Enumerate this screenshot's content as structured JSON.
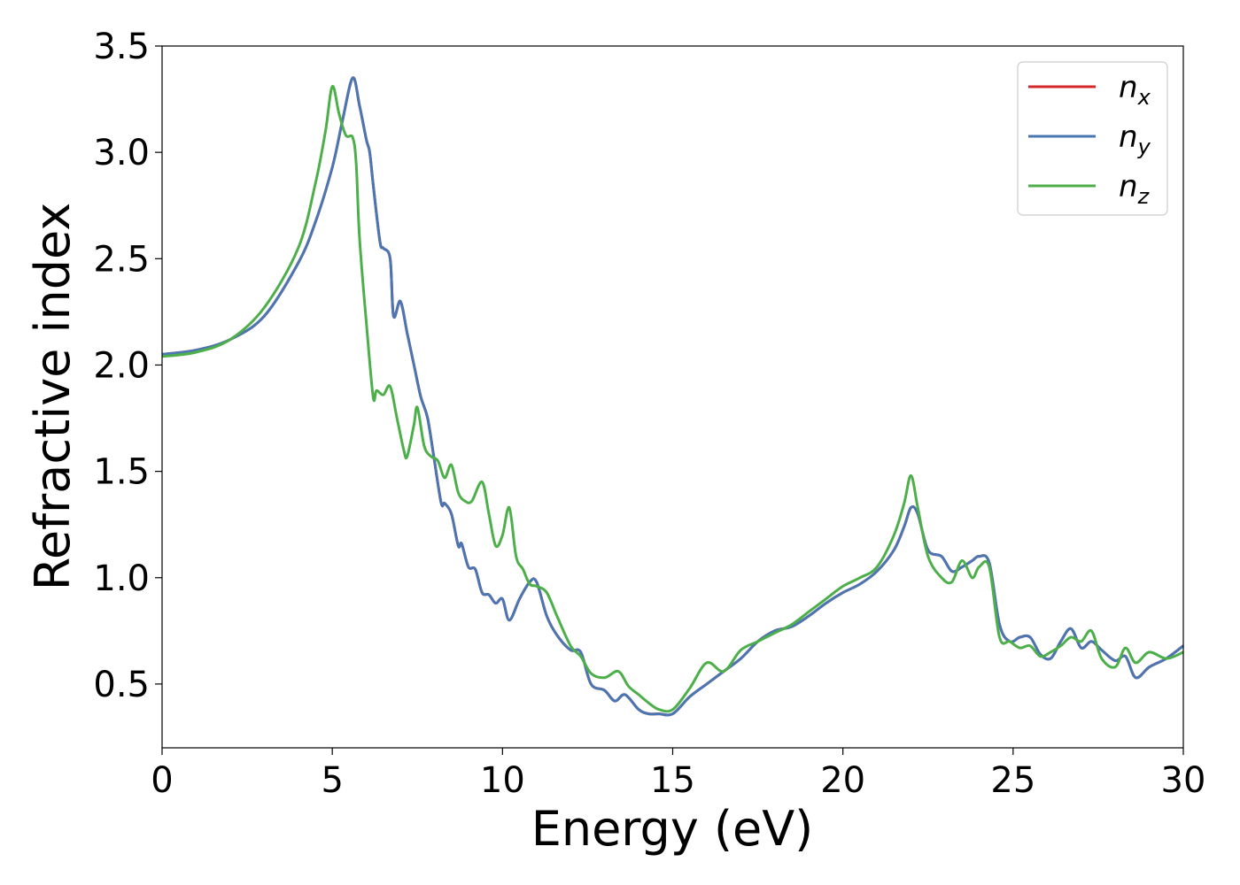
{
  "chart_data": {
    "type": "line",
    "xlabel": "Energy (eV)",
    "ylabel": "Refractive index",
    "xlim": [
      0,
      30
    ],
    "ylim": [
      0.2,
      3.5
    ],
    "xticks": [
      "0",
      "5",
      "10",
      "15",
      "20",
      "25",
      "30"
    ],
    "yticks": [
      "0.5",
      "1.0",
      "1.5",
      "2.0",
      "2.5",
      "3.0",
      "3.5"
    ],
    "grid": false,
    "legend_position": "top-right",
    "series": [
      {
        "name": "n",
        "subscript": "x",
        "color": "#d62728",
        "x": [
          0,
          1,
          2,
          3,
          4,
          4.5,
          5,
          5.3,
          5.6,
          5.8,
          6.0,
          6.1,
          6.2,
          6.4,
          6.5,
          6.7,
          6.8,
          7.0,
          7.2,
          7.4,
          7.6,
          7.8,
          8.0,
          8.2,
          8.3,
          8.5,
          8.7,
          8.8,
          9.0,
          9.2,
          9.4,
          9.6,
          9.8,
          10.0,
          10.2,
          10.5,
          10.8,
          11.0,
          11.3,
          11.6,
          12.0,
          12.3,
          12.6,
          13.0,
          13.3,
          13.6,
          14.0,
          14.3,
          14.6,
          15.0,
          15.5,
          16.0,
          16.5,
          17.0,
          17.5,
          18.0,
          18.5,
          19.0,
          19.5,
          20.0,
          20.5,
          21.0,
          21.5,
          21.8,
          22.0,
          22.2,
          22.5,
          22.9,
          23.2,
          23.5,
          23.8,
          24.0,
          24.3,
          24.6,
          24.9,
          25.2,
          25.5,
          25.8,
          26.1,
          26.4,
          26.7,
          27.0,
          27.3,
          27.6,
          28.0,
          28.3,
          28.6,
          29.0,
          29.5,
          30.0
        ],
        "y": [
          2.05,
          2.07,
          2.12,
          2.23,
          2.48,
          2.67,
          2.93,
          3.15,
          3.35,
          3.22,
          3.06,
          3.0,
          2.85,
          2.58,
          2.55,
          2.5,
          2.23,
          2.3,
          2.15,
          2.0,
          1.85,
          1.75,
          1.55,
          1.35,
          1.35,
          1.3,
          1.15,
          1.16,
          1.05,
          1.04,
          0.93,
          0.92,
          0.88,
          0.9,
          0.8,
          0.9,
          0.98,
          0.98,
          0.82,
          0.73,
          0.66,
          0.65,
          0.5,
          0.47,
          0.42,
          0.45,
          0.38,
          0.36,
          0.36,
          0.36,
          0.44,
          0.5,
          0.56,
          0.62,
          0.7,
          0.75,
          0.77,
          0.82,
          0.88,
          0.93,
          0.97,
          1.03,
          1.13,
          1.24,
          1.33,
          1.3,
          1.13,
          1.1,
          1.03,
          1.05,
          1.08,
          1.1,
          1.07,
          0.78,
          0.7,
          0.72,
          0.72,
          0.64,
          0.62,
          0.7,
          0.76,
          0.67,
          0.7,
          0.66,
          0.61,
          0.63,
          0.53,
          0.58,
          0.62,
          0.68
        ]
      },
      {
        "name": "n",
        "subscript": "y",
        "color": "#4a76b3",
        "x": [
          0,
          1,
          2,
          3,
          4,
          4.5,
          5,
          5.3,
          5.6,
          5.8,
          6.0,
          6.1,
          6.2,
          6.4,
          6.5,
          6.7,
          6.8,
          7.0,
          7.2,
          7.4,
          7.6,
          7.8,
          8.0,
          8.2,
          8.3,
          8.5,
          8.7,
          8.8,
          9.0,
          9.2,
          9.4,
          9.6,
          9.8,
          10.0,
          10.2,
          10.5,
          10.8,
          11.0,
          11.3,
          11.6,
          12.0,
          12.3,
          12.6,
          13.0,
          13.3,
          13.6,
          14.0,
          14.3,
          14.6,
          15.0,
          15.5,
          16.0,
          16.5,
          17.0,
          17.5,
          18.0,
          18.5,
          19.0,
          19.5,
          20.0,
          20.5,
          21.0,
          21.5,
          21.8,
          22.0,
          22.2,
          22.5,
          22.9,
          23.2,
          23.5,
          23.8,
          24.0,
          24.3,
          24.6,
          24.9,
          25.2,
          25.5,
          25.8,
          26.1,
          26.4,
          26.7,
          27.0,
          27.3,
          27.6,
          28.0,
          28.3,
          28.6,
          29.0,
          29.5,
          30.0
        ],
        "y": [
          2.05,
          2.07,
          2.12,
          2.23,
          2.48,
          2.67,
          2.93,
          3.15,
          3.35,
          3.22,
          3.06,
          3.0,
          2.85,
          2.58,
          2.55,
          2.5,
          2.23,
          2.3,
          2.15,
          2.0,
          1.85,
          1.75,
          1.55,
          1.35,
          1.35,
          1.3,
          1.15,
          1.16,
          1.05,
          1.04,
          0.93,
          0.92,
          0.88,
          0.9,
          0.8,
          0.9,
          0.98,
          0.98,
          0.82,
          0.73,
          0.66,
          0.65,
          0.5,
          0.47,
          0.42,
          0.45,
          0.38,
          0.36,
          0.36,
          0.36,
          0.44,
          0.5,
          0.56,
          0.62,
          0.7,
          0.75,
          0.77,
          0.82,
          0.88,
          0.93,
          0.97,
          1.03,
          1.13,
          1.24,
          1.33,
          1.3,
          1.13,
          1.1,
          1.03,
          1.05,
          1.08,
          1.1,
          1.07,
          0.78,
          0.7,
          0.72,
          0.72,
          0.64,
          0.62,
          0.7,
          0.76,
          0.67,
          0.7,
          0.66,
          0.61,
          0.63,
          0.53,
          0.58,
          0.62,
          0.68
        ]
      },
      {
        "name": "n",
        "subscript": "z",
        "color": "#4daf4a",
        "x": [
          0,
          1,
          2,
          3,
          4,
          4.5,
          4.8,
          5.0,
          5.2,
          5.4,
          5.6,
          5.7,
          5.8,
          6.0,
          6.2,
          6.3,
          6.5,
          6.7,
          6.9,
          7.1,
          7.2,
          7.4,
          7.5,
          7.7,
          7.9,
          8.1,
          8.3,
          8.5,
          8.7,
          8.9,
          9.1,
          9.4,
          9.6,
          9.8,
          10.0,
          10.2,
          10.4,
          10.6,
          10.8,
          11.0,
          11.3,
          11.6,
          12.0,
          12.3,
          12.6,
          13.0,
          13.4,
          13.7,
          14.0,
          14.3,
          14.6,
          15.0,
          15.5,
          16.0,
          16.5,
          17.0,
          17.5,
          18.0,
          18.5,
          19.0,
          19.5,
          20.0,
          20.5,
          21.0,
          21.5,
          21.8,
          22.0,
          22.2,
          22.5,
          22.9,
          23.2,
          23.5,
          23.8,
          24.0,
          24.3,
          24.6,
          24.9,
          25.2,
          25.5,
          25.8,
          26.1,
          26.4,
          26.7,
          27.0,
          27.3,
          27.6,
          28.0,
          28.3,
          28.6,
          29.0,
          29.5,
          30.0
        ],
        "y": [
          2.04,
          2.06,
          2.12,
          2.27,
          2.55,
          2.85,
          3.1,
          3.31,
          3.18,
          3.08,
          3.07,
          2.95,
          2.6,
          2.2,
          1.85,
          1.88,
          1.86,
          1.9,
          1.75,
          1.6,
          1.57,
          1.72,
          1.8,
          1.62,
          1.57,
          1.55,
          1.47,
          1.53,
          1.4,
          1.36,
          1.36,
          1.45,
          1.3,
          1.15,
          1.2,
          1.33,
          1.1,
          1.04,
          0.97,
          0.96,
          0.93,
          0.82,
          0.68,
          0.63,
          0.55,
          0.53,
          0.56,
          0.49,
          0.45,
          0.41,
          0.38,
          0.38,
          0.48,
          0.6,
          0.56,
          0.66,
          0.7,
          0.74,
          0.78,
          0.84,
          0.9,
          0.96,
          1.0,
          1.05,
          1.2,
          1.35,
          1.48,
          1.33,
          1.1,
          1.0,
          0.98,
          1.08,
          1.0,
          1.05,
          1.05,
          0.72,
          0.7,
          0.67,
          0.68,
          0.63,
          0.65,
          0.68,
          0.72,
          0.7,
          0.75,
          0.62,
          0.58,
          0.67,
          0.6,
          0.65,
          0.62,
          0.65
        ]
      }
    ]
  }
}
